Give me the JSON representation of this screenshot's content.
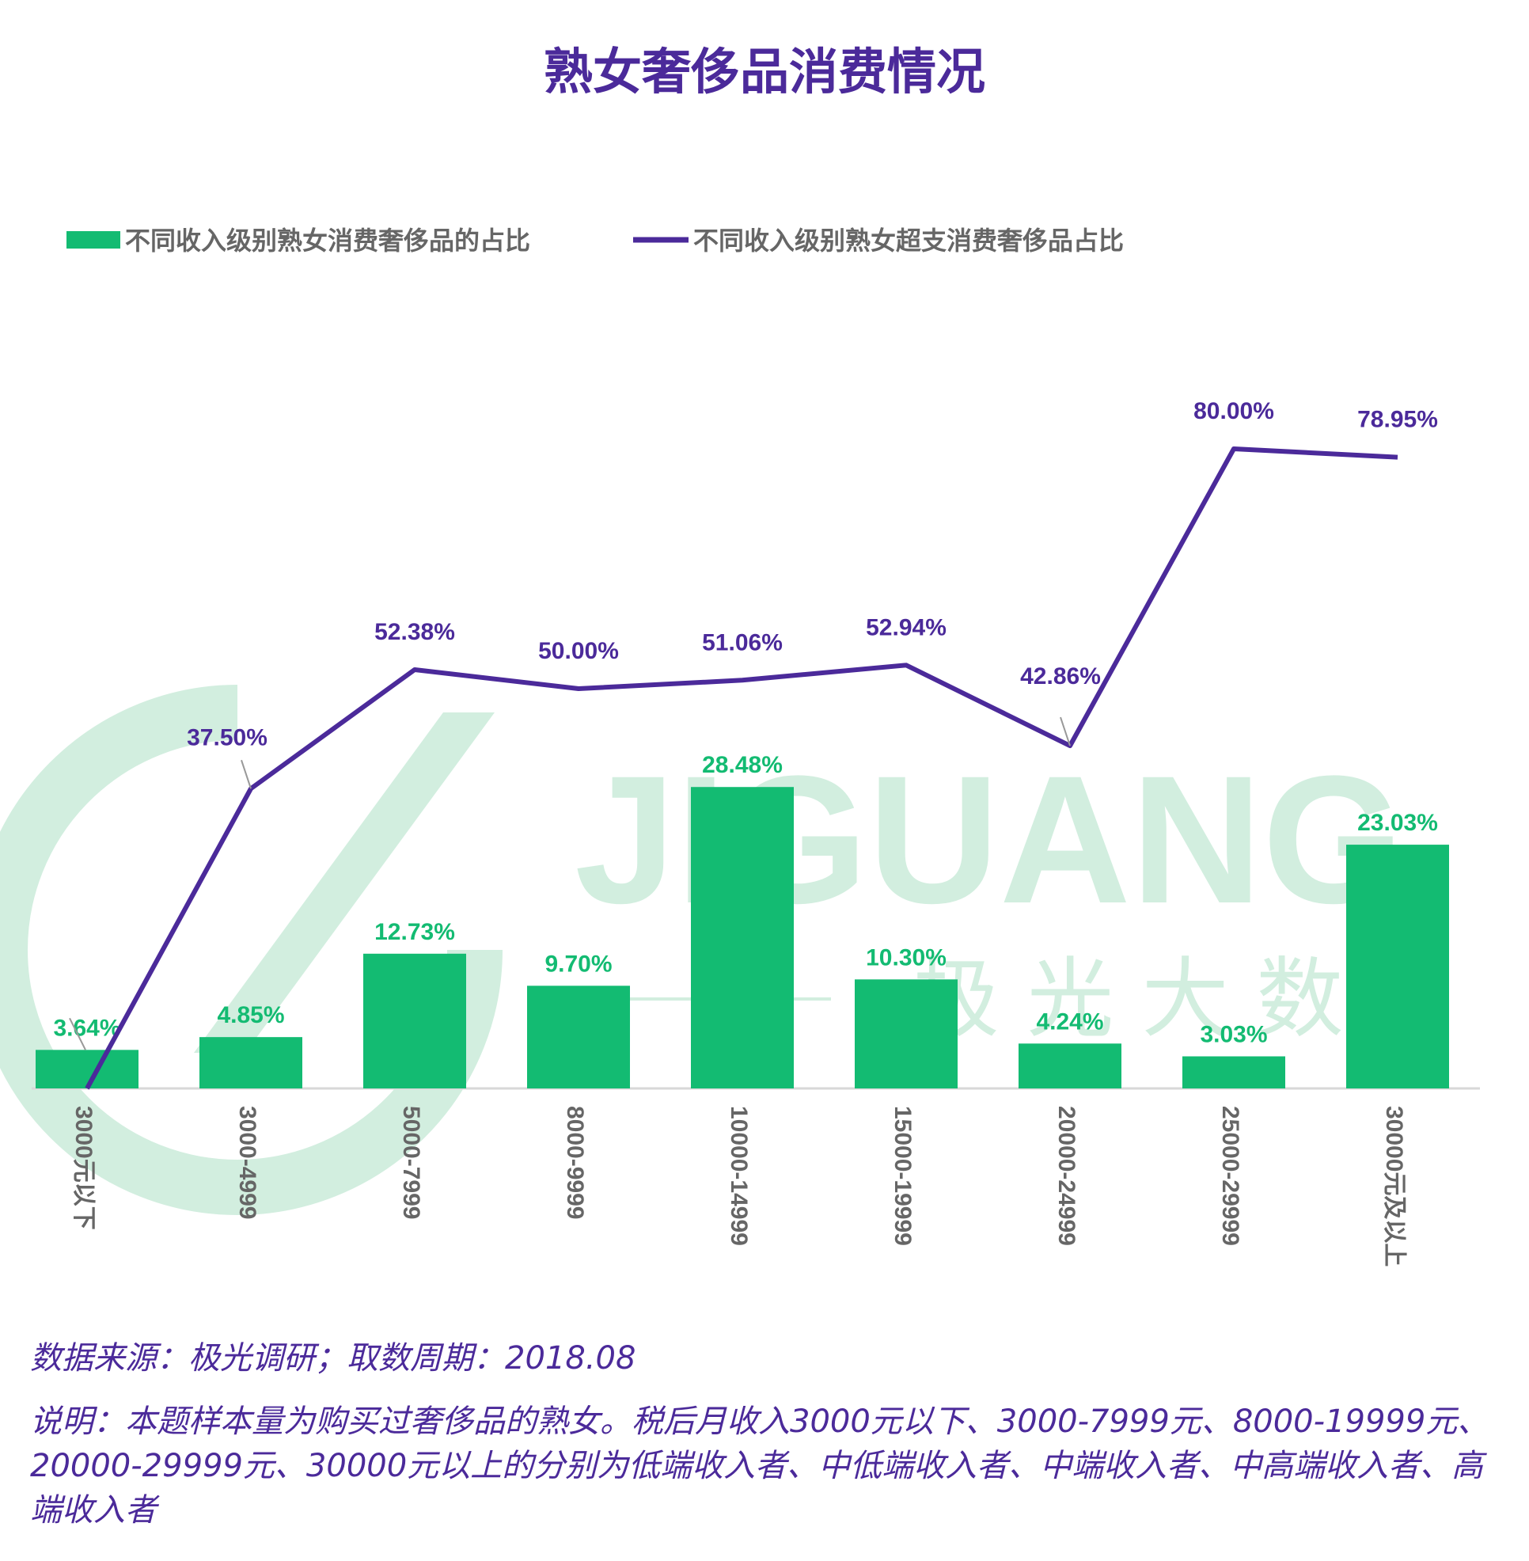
{
  "chart_data": {
    "type": "bar",
    "title": "熟女奢侈品消费情况",
    "categories": [
      "3000元以下",
      "3000-4999",
      "5000-7999",
      "8000-9999",
      "10000-14999",
      "15000-19999",
      "20000-24999",
      "25000-29999",
      "30000元及以上"
    ],
    "series": [
      {
        "name": "不同收入级别熟女消费奢侈品的占比",
        "type": "bar",
        "values": [
          3.64,
          4.85,
          12.73,
          9.7,
          28.48,
          10.3,
          4.24,
          3.03,
          23.03
        ],
        "labels": [
          "3.64%",
          "4.85%",
          "12.73%",
          "9.70%",
          "28.48%",
          "10.30%",
          "4.24%",
          "3.03%",
          "23.03%"
        ]
      },
      {
        "name": "不同收入级别熟女超支消费奢侈品占比",
        "type": "line",
        "values": [
          0,
          37.5,
          52.38,
          50.0,
          51.06,
          52.94,
          42.86,
          80.0,
          78.95
        ],
        "labels": [
          "",
          "37.50%",
          "52.38%",
          "50.00%",
          "51.06%",
          "52.94%",
          "42.86%",
          "80.00%",
          "78.95%"
        ]
      }
    ],
    "legend_position": "top",
    "grid": false,
    "colors": {
      "bar": "#13bb72",
      "line": "#4b2a9a",
      "axis_text": "#666666",
      "watermark": "#d2eedf"
    }
  },
  "watermark": {
    "brand": "JIGUANG",
    "tagline": "极 光 大 数"
  },
  "footer": {
    "source": "数据来源：极光调研；取数周期：2018.08",
    "description": "说明：本题样本量为购买过奢侈品的熟女。税后月收入3000元以下、3000-7999元、8000-19999元、20000-29999元、30000元以上的分别为低端收入者、中低端收入者、中端收入者、中高端收入者、高端收入者"
  }
}
